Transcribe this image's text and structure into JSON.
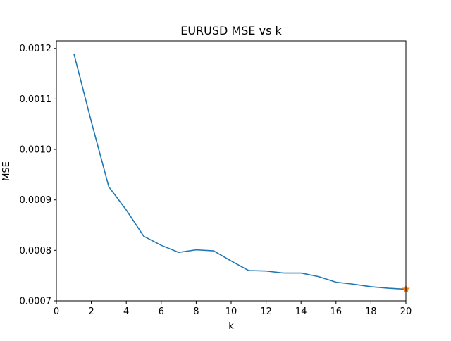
{
  "chart_data": {
    "type": "line",
    "title": "EURUSD MSE vs k",
    "xlabel": "k",
    "ylabel": "MSE",
    "xlim": [
      0,
      20
    ],
    "ylim": [
      0.0007,
      0.001215
    ],
    "xticks": [
      0,
      2,
      4,
      6,
      8,
      10,
      12,
      14,
      16,
      18,
      20
    ],
    "xtick_labels": [
      "0",
      "2",
      "4",
      "6",
      "8",
      "10",
      "12",
      "14",
      "16",
      "18",
      "20"
    ],
    "yticks": [
      0.0007,
      0.0008,
      0.0009,
      0.001,
      0.0011,
      0.0012
    ],
    "ytick_labels": [
      "0.0007",
      "0.0008",
      "0.0009",
      "0.0010",
      "0.0011",
      "0.0012"
    ],
    "grid": false,
    "legend": "none",
    "series": [
      {
        "color": "#1f77b4",
        "x": [
          1,
          2,
          3,
          4,
          5,
          6,
          7,
          8,
          9,
          10,
          11,
          12,
          13,
          14,
          15,
          16,
          17,
          18,
          19,
          20
        ],
        "y": [
          0.00119,
          0.001055,
          0.000926,
          0.00088,
          0.000828,
          0.00081,
          0.000796,
          0.000801,
          0.000799,
          0.000779,
          0.00076,
          0.000759,
          0.000755,
          0.000755,
          0.000748,
          0.000737,
          0.000733,
          0.000728,
          0.000725,
          0.000723
        ]
      }
    ],
    "markers": [
      {
        "x": 20,
        "y": 0.000723,
        "shape": "star",
        "color": "#ff7f0e"
      }
    ]
  }
}
